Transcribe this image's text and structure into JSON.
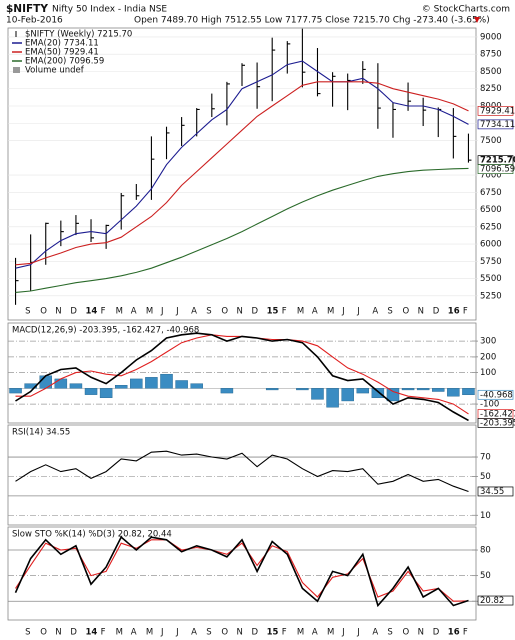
{
  "header": {
    "symbol": "$NIFTY",
    "name": "Nifty 50 Index - India NSE",
    "source": "© StockCharts.com",
    "date": "10-Feb-2016",
    "quote": "Open 7489.70 High 7512.55 Low 7177.75 Close 7215.70 Chg -273.40 (-3.65%)"
  },
  "chart_data": [
    {
      "type": "ohlc",
      "ylim": [
        4900,
        9130
      ],
      "grid": true,
      "yticks": [
        5250,
        5500,
        5750,
        6000,
        6250,
        6500,
        6750,
        7000,
        7500,
        7750,
        8000,
        8250,
        8500,
        8750,
        9000
      ],
      "categories": [
        null,
        "S",
        "O",
        "N",
        "D",
        "14",
        "F",
        "M",
        "A",
        "M",
        "J",
        "J",
        "A",
        "S",
        "O",
        "N",
        "D",
        "15",
        "F",
        "M",
        "A",
        "M",
        "J",
        "J",
        "A",
        "S",
        "O",
        "N",
        "D",
        "16",
        "F"
      ],
      "legend_extra": "Volume undef",
      "series": [
        {
          "name": "$NIFTY (Weekly) 7215.70",
          "kind": "ohlc",
          "color": "#000000",
          "close_label": "7215.70",
          "high": [
            5800,
            6140,
            6310,
            6340,
            6420,
            6360,
            6280,
            6740,
            6870,
            7560,
            7700,
            7840,
            7970,
            8180,
            8350,
            8620,
            8630,
            8990,
            8940,
            9120,
            8840,
            8490,
            8470,
            8650,
            8620,
            8050,
            8340,
            8120,
            7980,
            7970,
            7600
          ],
          "low": [
            5120,
            5320,
            5700,
            5970,
            6130,
            6030,
            5930,
            6210,
            6640,
            6640,
            7230,
            7420,
            7560,
            7840,
            7720,
            8290,
            7960,
            8070,
            8470,
            8270,
            8140,
            7990,
            7940,
            8320,
            7670,
            7540,
            7930,
            7710,
            7550,
            7240,
            7180
          ],
          "values": [
            5470,
            5735,
            6300,
            6180,
            6300,
            6090,
            6270,
            6700,
            6700,
            7230,
            7610,
            7720,
            7950,
            7960,
            8320,
            8590,
            8280,
            8810,
            8900,
            8490,
            8180,
            8430,
            8370,
            8530,
            7970,
            7950,
            8070,
            7940,
            7950,
            7560,
            7215.7
          ]
        },
        {
          "name": "EMA(20) 7734.11",
          "kind": "line",
          "color": "#1c1c90",
          "end_label": true,
          "values": [
            5650,
            5700,
            5900,
            6050,
            6150,
            6180,
            6150,
            6350,
            6550,
            6800,
            7150,
            7400,
            7600,
            7800,
            7950,
            8250,
            8350,
            8450,
            8600,
            8650,
            8500,
            8350,
            8350,
            8400,
            8250,
            8050,
            8000,
            8000,
            7950,
            7850,
            7734.11
          ]
        },
        {
          "name": "EMA(50) 7929.41",
          "kind": "line",
          "color": "#cc2020",
          "end_label": true,
          "values": [
            5700,
            5720,
            5800,
            5870,
            5950,
            6000,
            6020,
            6100,
            6250,
            6400,
            6600,
            6850,
            7050,
            7250,
            7450,
            7650,
            7850,
            8000,
            8150,
            8300,
            8350,
            8350,
            8350,
            8350,
            8330,
            8250,
            8200,
            8150,
            8100,
            8030,
            7929.41
          ]
        },
        {
          "name": "EMA(200) 7096.59",
          "kind": "line",
          "color": "#2a6a2a",
          "end_label": true,
          "values": [
            5300,
            5320,
            5360,
            5400,
            5440,
            5470,
            5500,
            5540,
            5590,
            5650,
            5730,
            5810,
            5900,
            5990,
            6080,
            6180,
            6290,
            6400,
            6510,
            6610,
            6700,
            6780,
            6850,
            6920,
            6980,
            7020,
            7050,
            7070,
            7080,
            7090,
            7096.59
          ]
        }
      ]
    },
    {
      "type": "macd",
      "title": "MACD(12,26,9) -203.395, -162.427, -40.968",
      "ylim": [
        -220,
        415
      ],
      "yticks": [
        -100,
        100,
        200,
        300
      ],
      "series": [
        {
          "kind": "bar",
          "color": "#3a8cc2",
          "end_label": true,
          "values": [
            -30,
            30,
            80,
            60,
            30,
            -40,
            -60,
            20,
            60,
            70,
            90,
            50,
            30,
            0,
            -30,
            0,
            0,
            -10,
            0,
            -10,
            -70,
            -120,
            -80,
            -30,
            -60,
            -80,
            -10,
            -10,
            -20,
            -50,
            -40.968
          ]
        },
        {
          "kind": "line",
          "color": "#e02020",
          "end_label": true,
          "values": [
            -50,
            -50,
            0,
            60,
            100,
            110,
            90,
            80,
            120,
            170,
            230,
            290,
            320,
            340,
            330,
            330,
            320,
            310,
            310,
            300,
            270,
            200,
            130,
            90,
            40,
            -20,
            -50,
            -60,
            -70,
            -100,
            -162.427
          ]
        },
        {
          "kind": "line",
          "color": "#000000",
          "width": 1.6,
          "end_label": true,
          "values": [
            -80,
            -20,
            80,
            120,
            130,
            70,
            30,
            100,
            180,
            240,
            320,
            340,
            350,
            340,
            300,
            330,
            320,
            300,
            310,
            290,
            200,
            80,
            50,
            60,
            -20,
            -100,
            -60,
            -70,
            -90,
            -150,
            -203.395
          ]
        }
      ]
    },
    {
      "type": "rsi",
      "title": "RSI(14) 34.55",
      "ylim": [
        0,
        103
      ],
      "yticks": [
        10,
        50,
        70
      ],
      "ref_lines": [
        30,
        70
      ],
      "series": [
        {
          "kind": "line",
          "color": "#000000",
          "end_label": true,
          "values": [
            45,
            55,
            62,
            55,
            58,
            48,
            55,
            68,
            66,
            75,
            76,
            72,
            73,
            70,
            68,
            74,
            60,
            72,
            68,
            58,
            50,
            56,
            55,
            58,
            42,
            45,
            52,
            45,
            47,
            40,
            34.55
          ]
        }
      ]
    },
    {
      "type": "stochastic",
      "title": "Slow STO %K(14) %D(3) 20.82, 20.44",
      "ylim": [
        -2,
        107
      ],
      "yticks": [
        20,
        50,
        80
      ],
      "ref_lines": [
        20,
        80
      ],
      "categories": [
        null,
        "S",
        "O",
        "N",
        "D",
        "14",
        "F",
        "M",
        "A",
        "M",
        "J",
        "J",
        "A",
        "S",
        "O",
        "N",
        "D",
        "15",
        "F",
        "M",
        "A",
        "M",
        "J",
        "J",
        "A",
        "S",
        "O",
        "N",
        "D",
        "16",
        "F"
      ],
      "series": [
        {
          "kind": "line",
          "color": "#e02020",
          "values": [
            35,
            62,
            88,
            80,
            82,
            50,
            55,
            88,
            82,
            92,
            92,
            80,
            83,
            80,
            75,
            88,
            62,
            85,
            78,
            42,
            25,
            48,
            52,
            70,
            25,
            32,
            55,
            32,
            35,
            20,
            20.44
          ]
        },
        {
          "kind": "line",
          "color": "#000000",
          "width": 1.6,
          "end_label": true,
          "values": [
            30,
            70,
            92,
            75,
            85,
            40,
            60,
            95,
            80,
            95,
            92,
            78,
            85,
            80,
            72,
            92,
            55,
            90,
            75,
            35,
            20,
            55,
            50,
            75,
            15,
            35,
            60,
            25,
            35,
            15,
            20.82
          ]
        }
      ]
    }
  ]
}
